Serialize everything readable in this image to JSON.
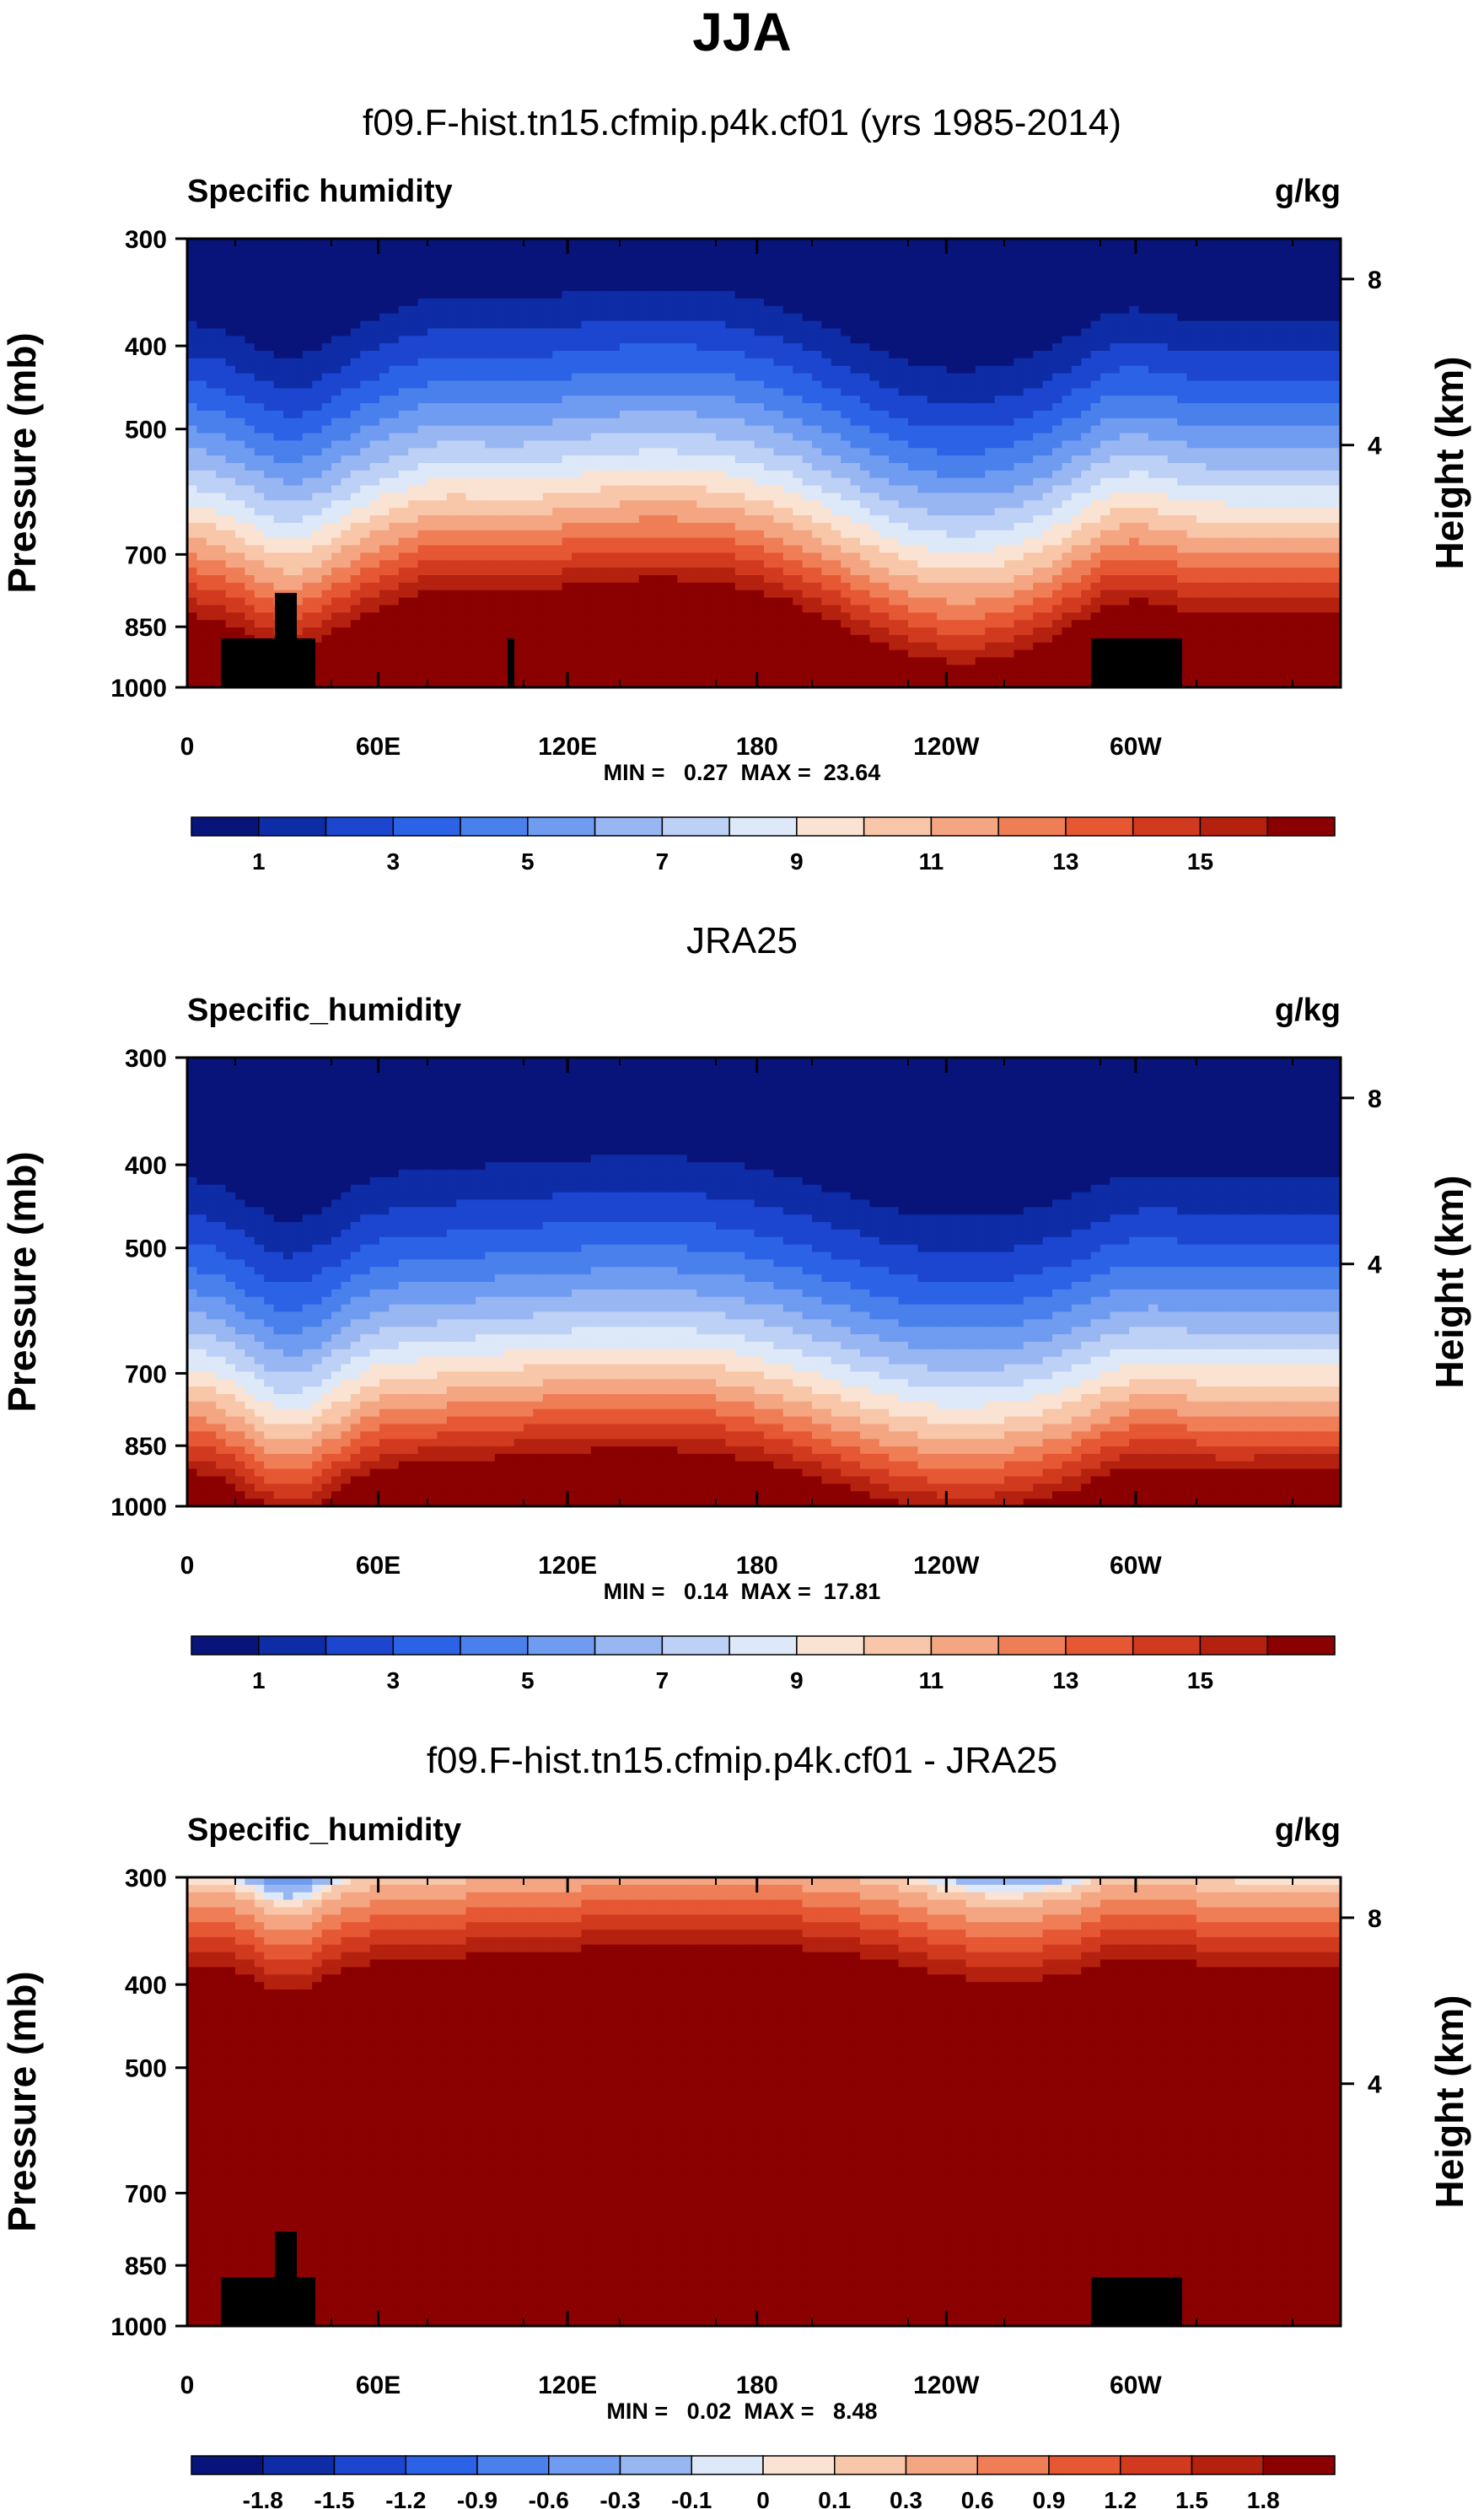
{
  "main_title": "JJA",
  "chart_data": [
    {
      "type": "heatmap",
      "title": "f09.F-hist.tn15.cfmip.p4k.cf01 (yrs 1985-2014)",
      "left_string": "Specific humidity",
      "right_string": "g/kg",
      "ylabel": "Pressure (mb)",
      "y2label": "Height (km)",
      "xticks": [
        "0",
        "60E",
        "120E",
        "180",
        "120W",
        "60W"
      ],
      "yticks": [
        "300",
        "400",
        "500",
        "700",
        "850",
        "1000"
      ],
      "y2ticks": [
        "8",
        "4"
      ],
      "stats": "MIN =   0.27  MAX =  23.64",
      "colorbar_labels": [
        "1",
        "3",
        "5",
        "7",
        "9",
        "11",
        "13",
        "15"
      ],
      "field": "model"
    },
    {
      "type": "heatmap",
      "title": "JRA25",
      "left_string": "Specific_humidity",
      "right_string": "g/kg",
      "ylabel": "Pressure (mb)",
      "y2label": "Height (km)",
      "xticks": [
        "0",
        "60E",
        "120E",
        "180",
        "120W",
        "60W"
      ],
      "yticks": [
        "300",
        "400",
        "500",
        "700",
        "850",
        "1000"
      ],
      "y2ticks": [
        "8",
        "4"
      ],
      "stats": "MIN =   0.14  MAX =  17.81",
      "colorbar_labels": [
        "1",
        "3",
        "5",
        "7",
        "9",
        "11",
        "13",
        "15"
      ],
      "field": "obs"
    },
    {
      "type": "heatmap",
      "title": "f09.F-hist.tn15.cfmip.p4k.cf01 - JRA25",
      "left_string": "Specific_humidity",
      "right_string": "g/kg",
      "ylabel": "Pressure (mb)",
      "y2label": "Height (km)",
      "xticks": [
        "0",
        "60E",
        "120E",
        "180",
        "120W",
        "60W"
      ],
      "yticks": [
        "300",
        "400",
        "500",
        "700",
        "850",
        "1000"
      ],
      "y2ticks": [
        "8",
        "4"
      ],
      "stats": "MIN =   0.02  MAX =   8.48",
      "colorbar_labels": [
        "-1.8",
        "-1.5",
        "-1.2",
        "-0.9",
        "-0.6",
        "-0.3",
        "-0.1",
        "0",
        "0.1",
        "0.3",
        "0.6",
        "0.9",
        "1.2",
        "1.5",
        "1.8"
      ],
      "field": "diff"
    }
  ],
  "colors": {
    "palette": [
      "#08147a",
      "#0d2ca6",
      "#1c46cf",
      "#2c62e6",
      "#4a80ec",
      "#6f9bf0",
      "#98b6f2",
      "#bdd0f5",
      "#dde8f8",
      "#fbe3d3",
      "#f8c6a8",
      "#f4a582",
      "#ef7e56",
      "#e65733",
      "#d23a1f",
      "#b4210f",
      "#8b0000"
    ],
    "diff_palette": [
      "#08147a",
      "#0d2ca6",
      "#1c46cf",
      "#2c62e6",
      "#4a80ec",
      "#6f9bf0",
      "#98b6f2",
      "#dde8f8",
      "#fbe3d3",
      "#f8c6a8",
      "#f4a582",
      "#ef7e56",
      "#e65733",
      "#d23a1f",
      "#b4210f",
      "#8b0000"
    ],
    "topography": "#000000"
  }
}
